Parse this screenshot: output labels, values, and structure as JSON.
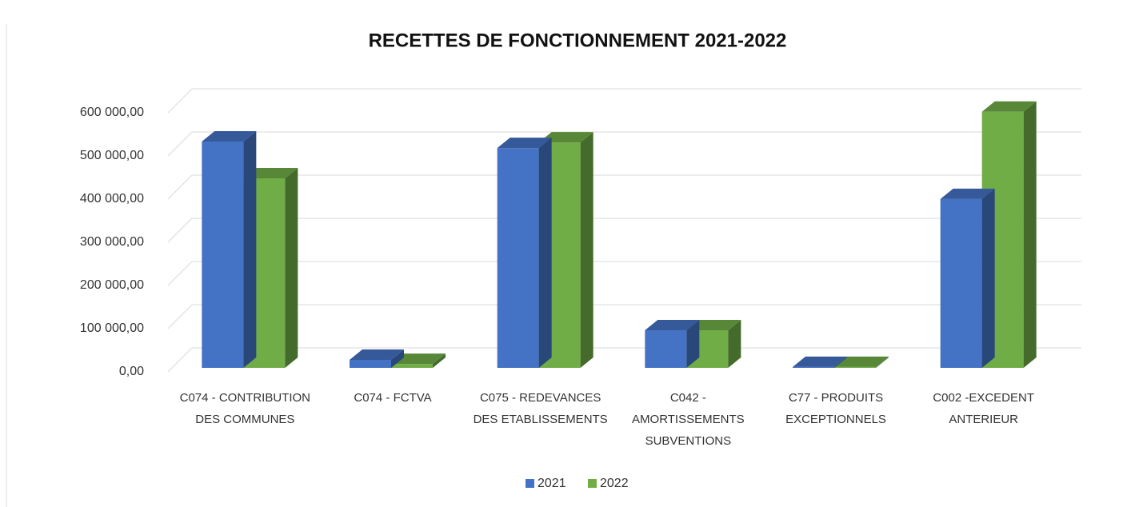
{
  "chart_data": {
    "type": "bar3d",
    "title": "RECETTES  DE FONCTIONNEMENT 2021-2022",
    "categories": [
      "C074 - CONTRIBUTION DES COMMUNES",
      "C074 - FCTVA",
      "C075 - REDEVANCES DES ETABLISSEMENTS",
      "C042 - AMORTISSEMENTS SUBVENTIONS",
      "C77 - PRODUITS EXCEPTIONNELS",
      "C002 -EXCEDENT ANTERIEUR"
    ],
    "series": [
      {
        "name": "2021",
        "color": "#4472c4",
        "values": [
          524000,
          18500,
          509000,
          87000,
          2000,
          391000
        ]
      },
      {
        "name": "2022",
        "color": "#70ad47",
        "values": [
          439000,
          9000,
          522000,
          87000,
          2000,
          593000
        ]
      }
    ],
    "ylim": [
      0,
      600000
    ],
    "yticks": [
      {
        "value": 0,
        "label": "0,00"
      },
      {
        "value": 100000,
        "label": "100 000,00"
      },
      {
        "value": 200000,
        "label": "200 000,00"
      },
      {
        "value": 300000,
        "label": "300 000,00"
      },
      {
        "value": 400000,
        "label": "400 000,00"
      },
      {
        "value": 500000,
        "label": "500 000,00"
      },
      {
        "value": 600000,
        "label": "600 000,00"
      }
    ],
    "grid": true,
    "legend": "bottom"
  }
}
